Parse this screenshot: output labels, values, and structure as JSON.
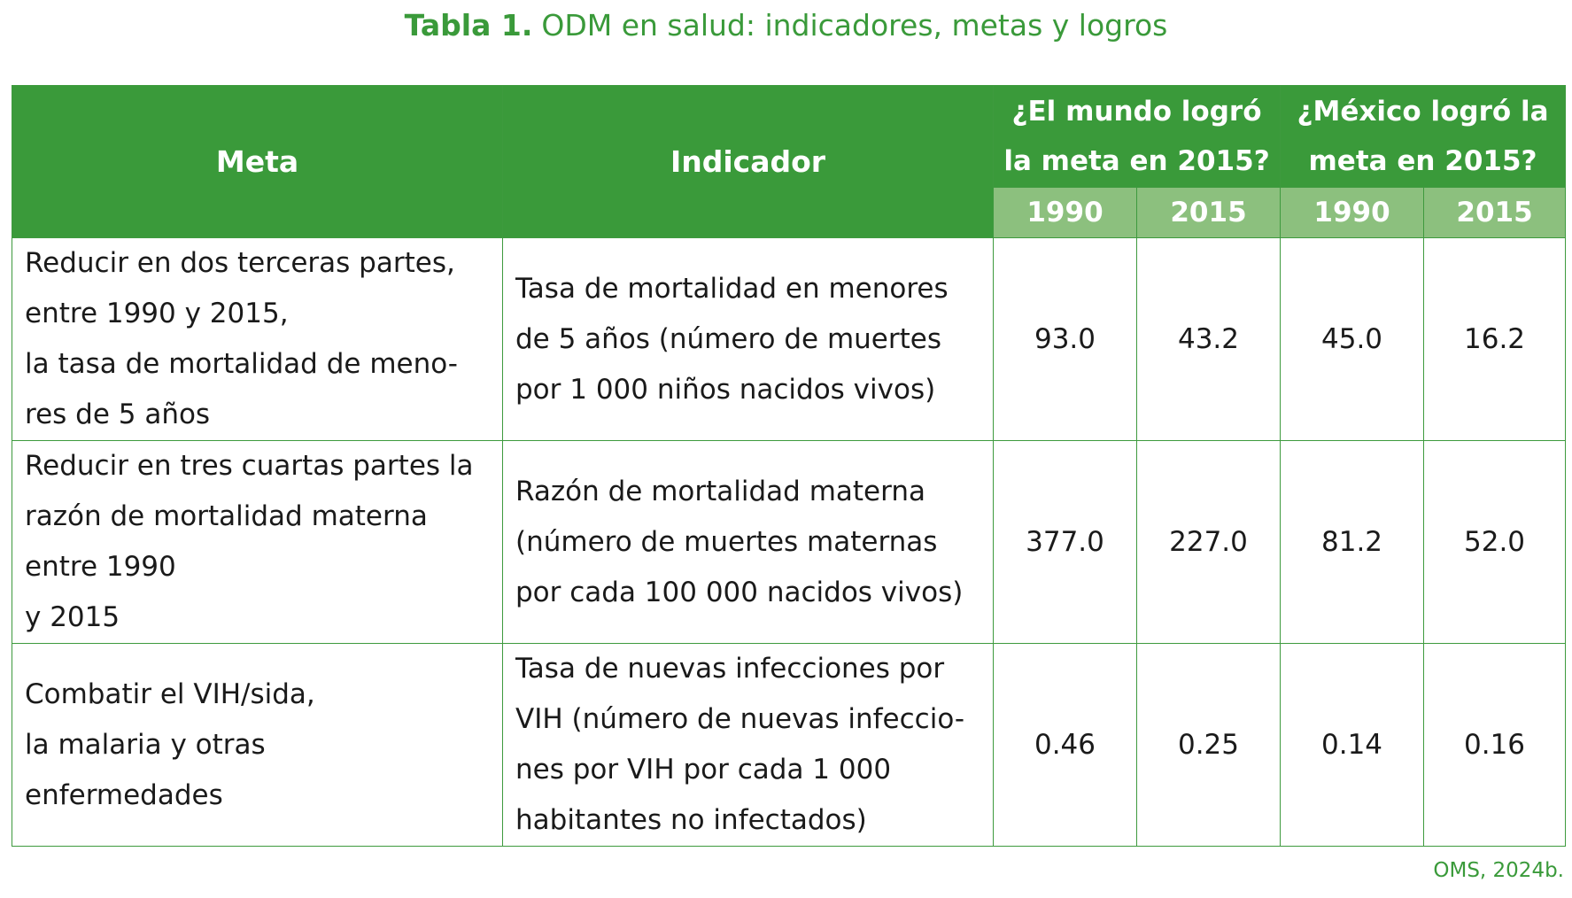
{
  "title": {
    "label": "Tabla 1.",
    "text": "ODM en salud: indicadores, metas y logros"
  },
  "table": {
    "col_meta": "Meta",
    "col_indicador": "Indicador",
    "group_world": "¿El mundo logró la meta en 2015?",
    "group_mexico": "¿México logró la meta en 2015?",
    "years": [
      "1990",
      "2015",
      "1990",
      "2015"
    ],
    "rows": [
      {
        "meta": "Reducir en dos terceras partes,\nentre 1990 y 2015,\nla tasa de mortalidad de meno-\nres de 5 años",
        "indicador": "Tasa de mortalidad en menores\nde 5 años (número de muertes\npor 1 000 niños nacidos vivos)",
        "world_1990": "93.0",
        "world_2015": "43.2",
        "mexico_1990": "45.0",
        "mexico_2015": "16.2"
      },
      {
        "meta": "Reducir en tres cuartas partes la\nrazón de mortalidad materna\nentre 1990\ny 2015",
        "indicador": "Razón de mortalidad materna\n(número de muertes maternas\npor cada 100 000 nacidos vivos)",
        "world_1990": "377.0",
        "world_2015": "227.0",
        "mexico_1990": "81.2",
        "mexico_2015": "52.0"
      },
      {
        "meta": "Combatir el VIH/sida,\nla malaria y otras\nenfermedades",
        "indicador": "Tasa de nuevas infecciones por\nVIH (número de nuevas infeccio-\nnes por VIH por cada 1 000\nhabitantes no infectados)",
        "world_1990": "0.46",
        "world_2015": "0.25",
        "mexico_1990": "0.14",
        "mexico_2015": "0.16"
      }
    ]
  },
  "source": "OMS, 2024b.",
  "colors": {
    "header_green": "#3a9a3a",
    "subheader_green": "#8cc07e",
    "border_green": "#3e9a3e"
  }
}
